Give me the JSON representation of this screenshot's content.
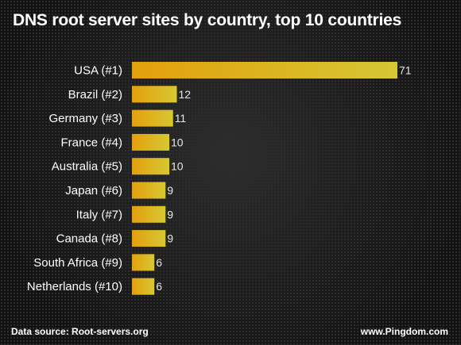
{
  "title": "DNS root server sites by country, top 10 countries",
  "footer": {
    "source": "Data source: Root-servers.org",
    "site": "www.Pingdom.com"
  },
  "colors": {
    "bar_start": "#e3a00c",
    "bar_end": "#d6c734",
    "label": "#ffffff",
    "value": "#e6e6e6"
  },
  "chart_data": {
    "type": "bar",
    "orientation": "horizontal",
    "categories": [
      "USA (#1)",
      "Brazil (#2)",
      "Germany (#3)",
      "France (#4)",
      "Australia (#5)",
      "Japan (#6)",
      "Italy (#7)",
      "Canada (#8)",
      "South Africa (#9)",
      "Netherlands (#10)"
    ],
    "values": [
      71,
      12,
      11,
      10,
      10,
      9,
      9,
      9,
      6,
      6
    ],
    "xlim": [
      0,
      71
    ],
    "grid": false,
    "legend": "none",
    "data_labels": true
  }
}
